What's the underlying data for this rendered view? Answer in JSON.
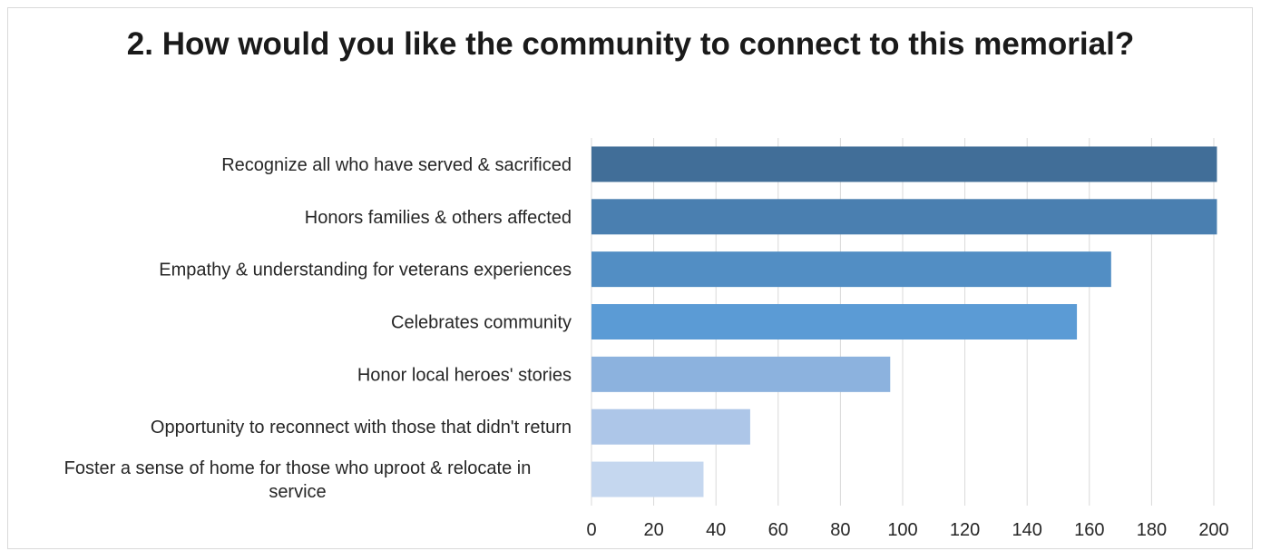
{
  "chart_data": {
    "type": "bar",
    "orientation": "horizontal",
    "title": "2. How would you like the community  to connect to this memorial?",
    "xlabel": "",
    "ylabel": "",
    "xlim": [
      0,
      200
    ],
    "x_ticks": [
      0,
      20,
      40,
      60,
      80,
      100,
      120,
      140,
      160,
      180,
      200
    ],
    "grid": true,
    "legend": "none",
    "categories": [
      [
        "Recognize all who have served  & sacrificed"
      ],
      [
        "Honors families & others affected"
      ],
      [
        "Empathy & understanding for veterans experiences"
      ],
      [
        "Celebrates community"
      ],
      [
        "Honor local heroes' stories"
      ],
      [
        "Opportunity to reconnect with those that didn't return"
      ],
      [
        "Foster a sense of home for those who uproot & relocate in",
        "service"
      ]
    ],
    "values": [
      201,
      201,
      167,
      156,
      96,
      51,
      36
    ],
    "colors": [
      "#416e98",
      "#4a7fb0",
      "#528ec4",
      "#5b9bd5",
      "#8cb2de",
      "#adc6e8",
      "#c5d7ef"
    ]
  }
}
